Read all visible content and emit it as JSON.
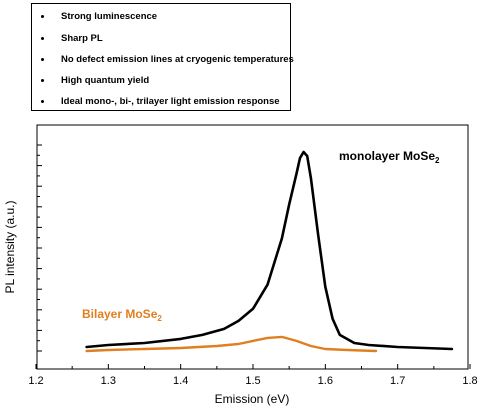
{
  "bullets": [
    "Strong luminescence",
    "Sharp PL",
    "No defect emission lines at cryogenic temperatures",
    "High quantum yield",
    "Ideal mono-, bi-, trilayer light emission response"
  ],
  "chart_data": {
    "type": "line",
    "title": "",
    "xlabel": "Emission (eV)",
    "ylabel": "PL intensity (a.u.)",
    "xlim": [
      1.2,
      1.8
    ],
    "ylim": [
      0,
      1
    ],
    "x_ticks": [
      "1.2",
      "1.3",
      "1.4",
      "1.5",
      "1.6",
      "1.7",
      "1.8"
    ],
    "grid": false,
    "colors": {
      "monolayer": "#000000",
      "bilayer": "#e07f1f"
    },
    "annotations": {
      "monolayer": {
        "main": "monolayer MoSe",
        "sub": "2"
      },
      "bilayer": {
        "main": "Bilayer MoSe",
        "sub": "2"
      }
    },
    "series": [
      {
        "key": "monolayer",
        "x": [
          1.27,
          1.3,
          1.35,
          1.4,
          1.43,
          1.46,
          1.48,
          1.5,
          1.52,
          1.54,
          1.55,
          1.56,
          1.565,
          1.57,
          1.575,
          1.58,
          1.59,
          1.6,
          1.61,
          1.62,
          1.64,
          1.66,
          1.7,
          1.775
        ],
        "y": [
          0.02,
          0.03,
          0.04,
          0.06,
          0.08,
          0.11,
          0.15,
          0.21,
          0.33,
          0.56,
          0.73,
          0.88,
          0.96,
          0.99,
          0.97,
          0.86,
          0.58,
          0.32,
          0.16,
          0.08,
          0.04,
          0.03,
          0.02,
          0.01
        ]
      },
      {
        "key": "bilayer",
        "x": [
          1.27,
          1.3,
          1.35,
          1.4,
          1.45,
          1.48,
          1.5,
          1.52,
          1.54,
          1.56,
          1.58,
          1.6,
          1.63,
          1.67
        ],
        "y": [
          0.0,
          0.005,
          0.01,
          0.015,
          0.025,
          0.035,
          0.05,
          0.065,
          0.07,
          0.05,
          0.025,
          0.01,
          0.005,
          0.0
        ]
      }
    ]
  }
}
